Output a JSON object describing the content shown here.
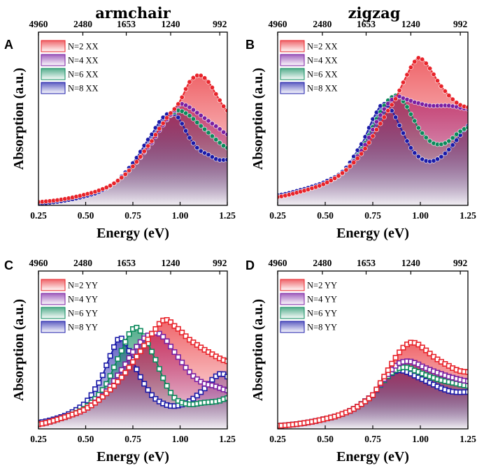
{
  "column_titles": [
    "armchair",
    "zigzag"
  ],
  "chart_data": [
    {
      "id": "A",
      "panel_label": "A",
      "type": "line",
      "marker": "circle",
      "xlabel": "Energy (eV)",
      "ylabel": "Absorption (a.u.)",
      "xlim": [
        0.25,
        1.25
      ],
      "ylim": [
        0,
        1
      ],
      "x_ticks": [
        "0.25",
        "0.50",
        "0.75",
        "1.00",
        "1.25"
      ],
      "top_axis_label_values": [
        "4960",
        "2480",
        "1653",
        "1240",
        "992"
      ],
      "series": [
        {
          "name": "N=2 XX",
          "color": "#e8232a",
          "points": [
            [
              0.25,
              0.02
            ],
            [
              0.4,
              0.04
            ],
            [
              0.55,
              0.08
            ],
            [
              0.65,
              0.13
            ],
            [
              0.75,
              0.23
            ],
            [
              0.85,
              0.38
            ],
            [
              0.92,
              0.5
            ],
            [
              0.97,
              0.57
            ],
            [
              1.0,
              0.62
            ],
            [
              1.05,
              0.73
            ],
            [
              1.1,
              0.77
            ],
            [
              1.15,
              0.73
            ],
            [
              1.2,
              0.64
            ],
            [
              1.25,
              0.56
            ]
          ]
        },
        {
          "name": "N=4 XX",
          "color": "#7a1fa2",
          "points": [
            [
              0.25,
              0.02
            ],
            [
              0.4,
              0.04
            ],
            [
              0.55,
              0.08
            ],
            [
              0.65,
              0.13
            ],
            [
              0.75,
              0.23
            ],
            [
              0.85,
              0.37
            ],
            [
              0.92,
              0.49
            ],
            [
              0.97,
              0.56
            ],
            [
              1.0,
              0.6
            ],
            [
              1.05,
              0.58
            ],
            [
              1.1,
              0.54
            ],
            [
              1.15,
              0.5
            ],
            [
              1.2,
              0.46
            ],
            [
              1.25,
              0.42
            ]
          ]
        },
        {
          "name": "N=6 XX",
          "color": "#0c8a5c",
          "points": [
            [
              0.25,
              0.02
            ],
            [
              0.4,
              0.04
            ],
            [
              0.55,
              0.08
            ],
            [
              0.65,
              0.13
            ],
            [
              0.75,
              0.23
            ],
            [
              0.85,
              0.37
            ],
            [
              0.92,
              0.49
            ],
            [
              0.97,
              0.55
            ],
            [
              1.0,
              0.56
            ],
            [
              1.05,
              0.53
            ],
            [
              1.1,
              0.48
            ],
            [
              1.15,
              0.43
            ],
            [
              1.2,
              0.38
            ],
            [
              1.25,
              0.34
            ]
          ]
        },
        {
          "name": "N=8 XX",
          "color": "#1a1aa8",
          "points": [
            [
              0.25,
              0.01
            ],
            [
              0.4,
              0.03
            ],
            [
              0.55,
              0.07
            ],
            [
              0.65,
              0.13
            ],
            [
              0.75,
              0.25
            ],
            [
              0.85,
              0.42
            ],
            [
              0.92,
              0.53
            ],
            [
              0.97,
              0.54
            ],
            [
              1.0,
              0.5
            ],
            [
              1.05,
              0.4
            ],
            [
              1.1,
              0.33
            ],
            [
              1.15,
              0.3
            ],
            [
              1.2,
              0.27
            ],
            [
              1.25,
              0.27
            ]
          ]
        }
      ]
    },
    {
      "id": "B",
      "panel_label": "B",
      "type": "line",
      "marker": "circle",
      "xlabel": "Energy (eV)",
      "ylabel": "Absorption (a.u.)",
      "xlim": [
        0.25,
        1.25
      ],
      "ylim": [
        0,
        1
      ],
      "x_ticks": [
        "0.25",
        "0.50",
        "0.75",
        "1.00",
        "1.25"
      ],
      "top_axis_label_values": [
        "4960",
        "2480",
        "1653",
        "1240",
        "992"
      ],
      "series": [
        {
          "name": "N=2 XX",
          "color": "#e8232a",
          "points": [
            [
              0.25,
              0.05
            ],
            [
              0.4,
              0.09
            ],
            [
              0.5,
              0.13
            ],
            [
              0.6,
              0.2
            ],
            [
              0.7,
              0.32
            ],
            [
              0.8,
              0.5
            ],
            [
              0.87,
              0.63
            ],
            [
              0.92,
              0.75
            ],
            [
              0.97,
              0.85
            ],
            [
              1.0,
              0.87
            ],
            [
              1.05,
              0.81
            ],
            [
              1.1,
              0.72
            ],
            [
              1.15,
              0.65
            ],
            [
              1.2,
              0.6
            ],
            [
              1.25,
              0.58
            ]
          ]
        },
        {
          "name": "N=4 XX",
          "color": "#7a1fa2",
          "points": [
            [
              0.25,
              0.05
            ],
            [
              0.4,
              0.09
            ],
            [
              0.5,
              0.13
            ],
            [
              0.6,
              0.2
            ],
            [
              0.7,
              0.34
            ],
            [
              0.8,
              0.55
            ],
            [
              0.87,
              0.64
            ],
            [
              0.92,
              0.63
            ],
            [
              0.97,
              0.61
            ],
            [
              1.05,
              0.59
            ],
            [
              1.15,
              0.59
            ],
            [
              1.25,
              0.57
            ]
          ]
        },
        {
          "name": "N=6 XX",
          "color": "#0c8a5c",
          "points": [
            [
              0.25,
              0.05
            ],
            [
              0.4,
              0.09
            ],
            [
              0.5,
              0.13
            ],
            [
              0.6,
              0.2
            ],
            [
              0.7,
              0.35
            ],
            [
              0.8,
              0.57
            ],
            [
              0.87,
              0.65
            ],
            [
              0.92,
              0.6
            ],
            [
              0.97,
              0.5
            ],
            [
              1.0,
              0.44
            ],
            [
              1.05,
              0.38
            ],
            [
              1.1,
              0.36
            ],
            [
              1.15,
              0.38
            ],
            [
              1.2,
              0.43
            ],
            [
              1.25,
              0.46
            ]
          ]
        },
        {
          "name": "N=8 XX",
          "color": "#1a1aa8",
          "points": [
            [
              0.25,
              0.06
            ],
            [
              0.4,
              0.1
            ],
            [
              0.5,
              0.14
            ],
            [
              0.6,
              0.21
            ],
            [
              0.7,
              0.38
            ],
            [
              0.77,
              0.55
            ],
            [
              0.81,
              0.6
            ],
            [
              0.85,
              0.56
            ],
            [
              0.9,
              0.45
            ],
            [
              0.95,
              0.34
            ],
            [
              1.0,
              0.28
            ],
            [
              1.05,
              0.26
            ],
            [
              1.1,
              0.28
            ],
            [
              1.15,
              0.33
            ],
            [
              1.2,
              0.4
            ],
            [
              1.25,
              0.47
            ]
          ]
        }
      ]
    },
    {
      "id": "C",
      "panel_label": "C",
      "type": "line",
      "marker": "square",
      "xlabel": "Energy (eV)",
      "ylabel": "Absorption (a.u.)",
      "xlim": [
        0.25,
        1.25
      ],
      "ylim": [
        0,
        1
      ],
      "x_ticks": [
        "0.25",
        "0.50",
        "0.75",
        "1.00",
        "1.25"
      ],
      "top_axis_label_values": [
        "4960",
        "2480",
        "1653",
        "1240",
        "992"
      ],
      "series": [
        {
          "name": "N=2 YY",
          "color": "#e8232a",
          "points": [
            [
              0.25,
              0.03
            ],
            [
              0.4,
              0.08
            ],
            [
              0.5,
              0.13
            ],
            [
              0.6,
              0.22
            ],
            [
              0.7,
              0.35
            ],
            [
              0.8,
              0.52
            ],
            [
              0.87,
              0.65
            ],
            [
              0.92,
              0.71
            ],
            [
              0.97,
              0.67
            ],
            [
              1.05,
              0.58
            ],
            [
              1.15,
              0.5
            ],
            [
              1.25,
              0.44
            ]
          ]
        },
        {
          "name": "N=4 YY",
          "color": "#7a1fa2",
          "points": [
            [
              0.25,
              0.03
            ],
            [
              0.4,
              0.08
            ],
            [
              0.5,
              0.13
            ],
            [
              0.6,
              0.23
            ],
            [
              0.7,
              0.4
            ],
            [
              0.78,
              0.55
            ],
            [
              0.85,
              0.62
            ],
            [
              0.9,
              0.61
            ],
            [
              0.97,
              0.5
            ],
            [
              1.05,
              0.37
            ],
            [
              1.12,
              0.3
            ],
            [
              1.18,
              0.28
            ],
            [
              1.25,
              0.25
            ]
          ]
        },
        {
          "name": "N=6 YY",
          "color": "#0c8a5c",
          "points": [
            [
              0.25,
              0.03
            ],
            [
              0.4,
              0.08
            ],
            [
              0.5,
              0.14
            ],
            [
              0.6,
              0.27
            ],
            [
              0.68,
              0.48
            ],
            [
              0.75,
              0.65
            ],
            [
              0.8,
              0.62
            ],
            [
              0.87,
              0.45
            ],
            [
              0.93,
              0.28
            ],
            [
              0.98,
              0.19
            ],
            [
              1.05,
              0.16
            ],
            [
              1.12,
              0.17
            ],
            [
              1.2,
              0.18
            ],
            [
              1.25,
              0.2
            ]
          ]
        },
        {
          "name": "N=8 YY",
          "color": "#1a1aa8",
          "points": [
            [
              0.25,
              0.04
            ],
            [
              0.4,
              0.09
            ],
            [
              0.5,
              0.17
            ],
            [
              0.58,
              0.32
            ],
            [
              0.64,
              0.5
            ],
            [
              0.68,
              0.59
            ],
            [
              0.72,
              0.53
            ],
            [
              0.78,
              0.36
            ],
            [
              0.85,
              0.22
            ],
            [
              0.92,
              0.16
            ],
            [
              0.98,
              0.15
            ],
            [
              1.05,
              0.18
            ],
            [
              1.12,
              0.25
            ],
            [
              1.18,
              0.33
            ],
            [
              1.22,
              0.36
            ],
            [
              1.25,
              0.34
            ]
          ]
        }
      ]
    },
    {
      "id": "D",
      "panel_label": "D",
      "type": "line",
      "marker": "square",
      "xlabel": "Energy (eV)",
      "ylabel": "Absorption (a.u.)",
      "xlim": [
        0.25,
        1.25
      ],
      "ylim": [
        0,
        1
      ],
      "x_ticks": [
        "0.25",
        "0.50",
        "0.75",
        "1.00",
        "1.25"
      ],
      "top_axis_label_values": [
        "4960",
        "2480",
        "1653",
        "1240",
        "992"
      ],
      "series": [
        {
          "name": "N=2 YY",
          "color": "#e8232a",
          "points": [
            [
              0.25,
              0.02
            ],
            [
              0.4,
              0.04
            ],
            [
              0.55,
              0.08
            ],
            [
              0.65,
              0.13
            ],
            [
              0.75,
              0.22
            ],
            [
              0.82,
              0.36
            ],
            [
              0.88,
              0.48
            ],
            [
              0.93,
              0.55
            ],
            [
              0.97,
              0.56
            ],
            [
              1.02,
              0.52
            ],
            [
              1.08,
              0.46
            ],
            [
              1.15,
              0.41
            ],
            [
              1.2,
              0.38
            ],
            [
              1.25,
              0.37
            ]
          ]
        },
        {
          "name": "N=4 YY",
          "color": "#7a1fa2",
          "points": [
            [
              0.25,
              0.02
            ],
            [
              0.4,
              0.04
            ],
            [
              0.55,
              0.08
            ],
            [
              0.65,
              0.13
            ],
            [
              0.75,
              0.22
            ],
            [
              0.82,
              0.34
            ],
            [
              0.88,
              0.42
            ],
            [
              0.93,
              0.44
            ],
            [
              0.97,
              0.43
            ],
            [
              1.02,
              0.4
            ],
            [
              1.08,
              0.37
            ],
            [
              1.15,
              0.34
            ],
            [
              1.25,
              0.31
            ]
          ]
        },
        {
          "name": "N=6 YY",
          "color": "#0c8a5c",
          "points": [
            [
              0.25,
              0.02
            ],
            [
              0.4,
              0.04
            ],
            [
              0.55,
              0.08
            ],
            [
              0.65,
              0.13
            ],
            [
              0.75,
              0.22
            ],
            [
              0.82,
              0.33
            ],
            [
              0.88,
              0.39
            ],
            [
              0.93,
              0.4
            ],
            [
              0.97,
              0.38
            ],
            [
              1.03,
              0.35
            ],
            [
              1.1,
              0.32
            ],
            [
              1.17,
              0.3
            ],
            [
              1.25,
              0.28
            ]
          ]
        },
        {
          "name": "N=8 YY",
          "color": "#1a1aa8",
          "points": [
            [
              0.25,
              0.02
            ],
            [
              0.4,
              0.04
            ],
            [
              0.55,
              0.08
            ],
            [
              0.65,
              0.13
            ],
            [
              0.75,
              0.22
            ],
            [
              0.82,
              0.33
            ],
            [
              0.88,
              0.38
            ],
            [
              0.93,
              0.37
            ],
            [
              0.98,
              0.34
            ],
            [
              1.05,
              0.3
            ],
            [
              1.12,
              0.26
            ],
            [
              1.18,
              0.24
            ],
            [
              1.25,
              0.24
            ]
          ]
        }
      ]
    }
  ]
}
